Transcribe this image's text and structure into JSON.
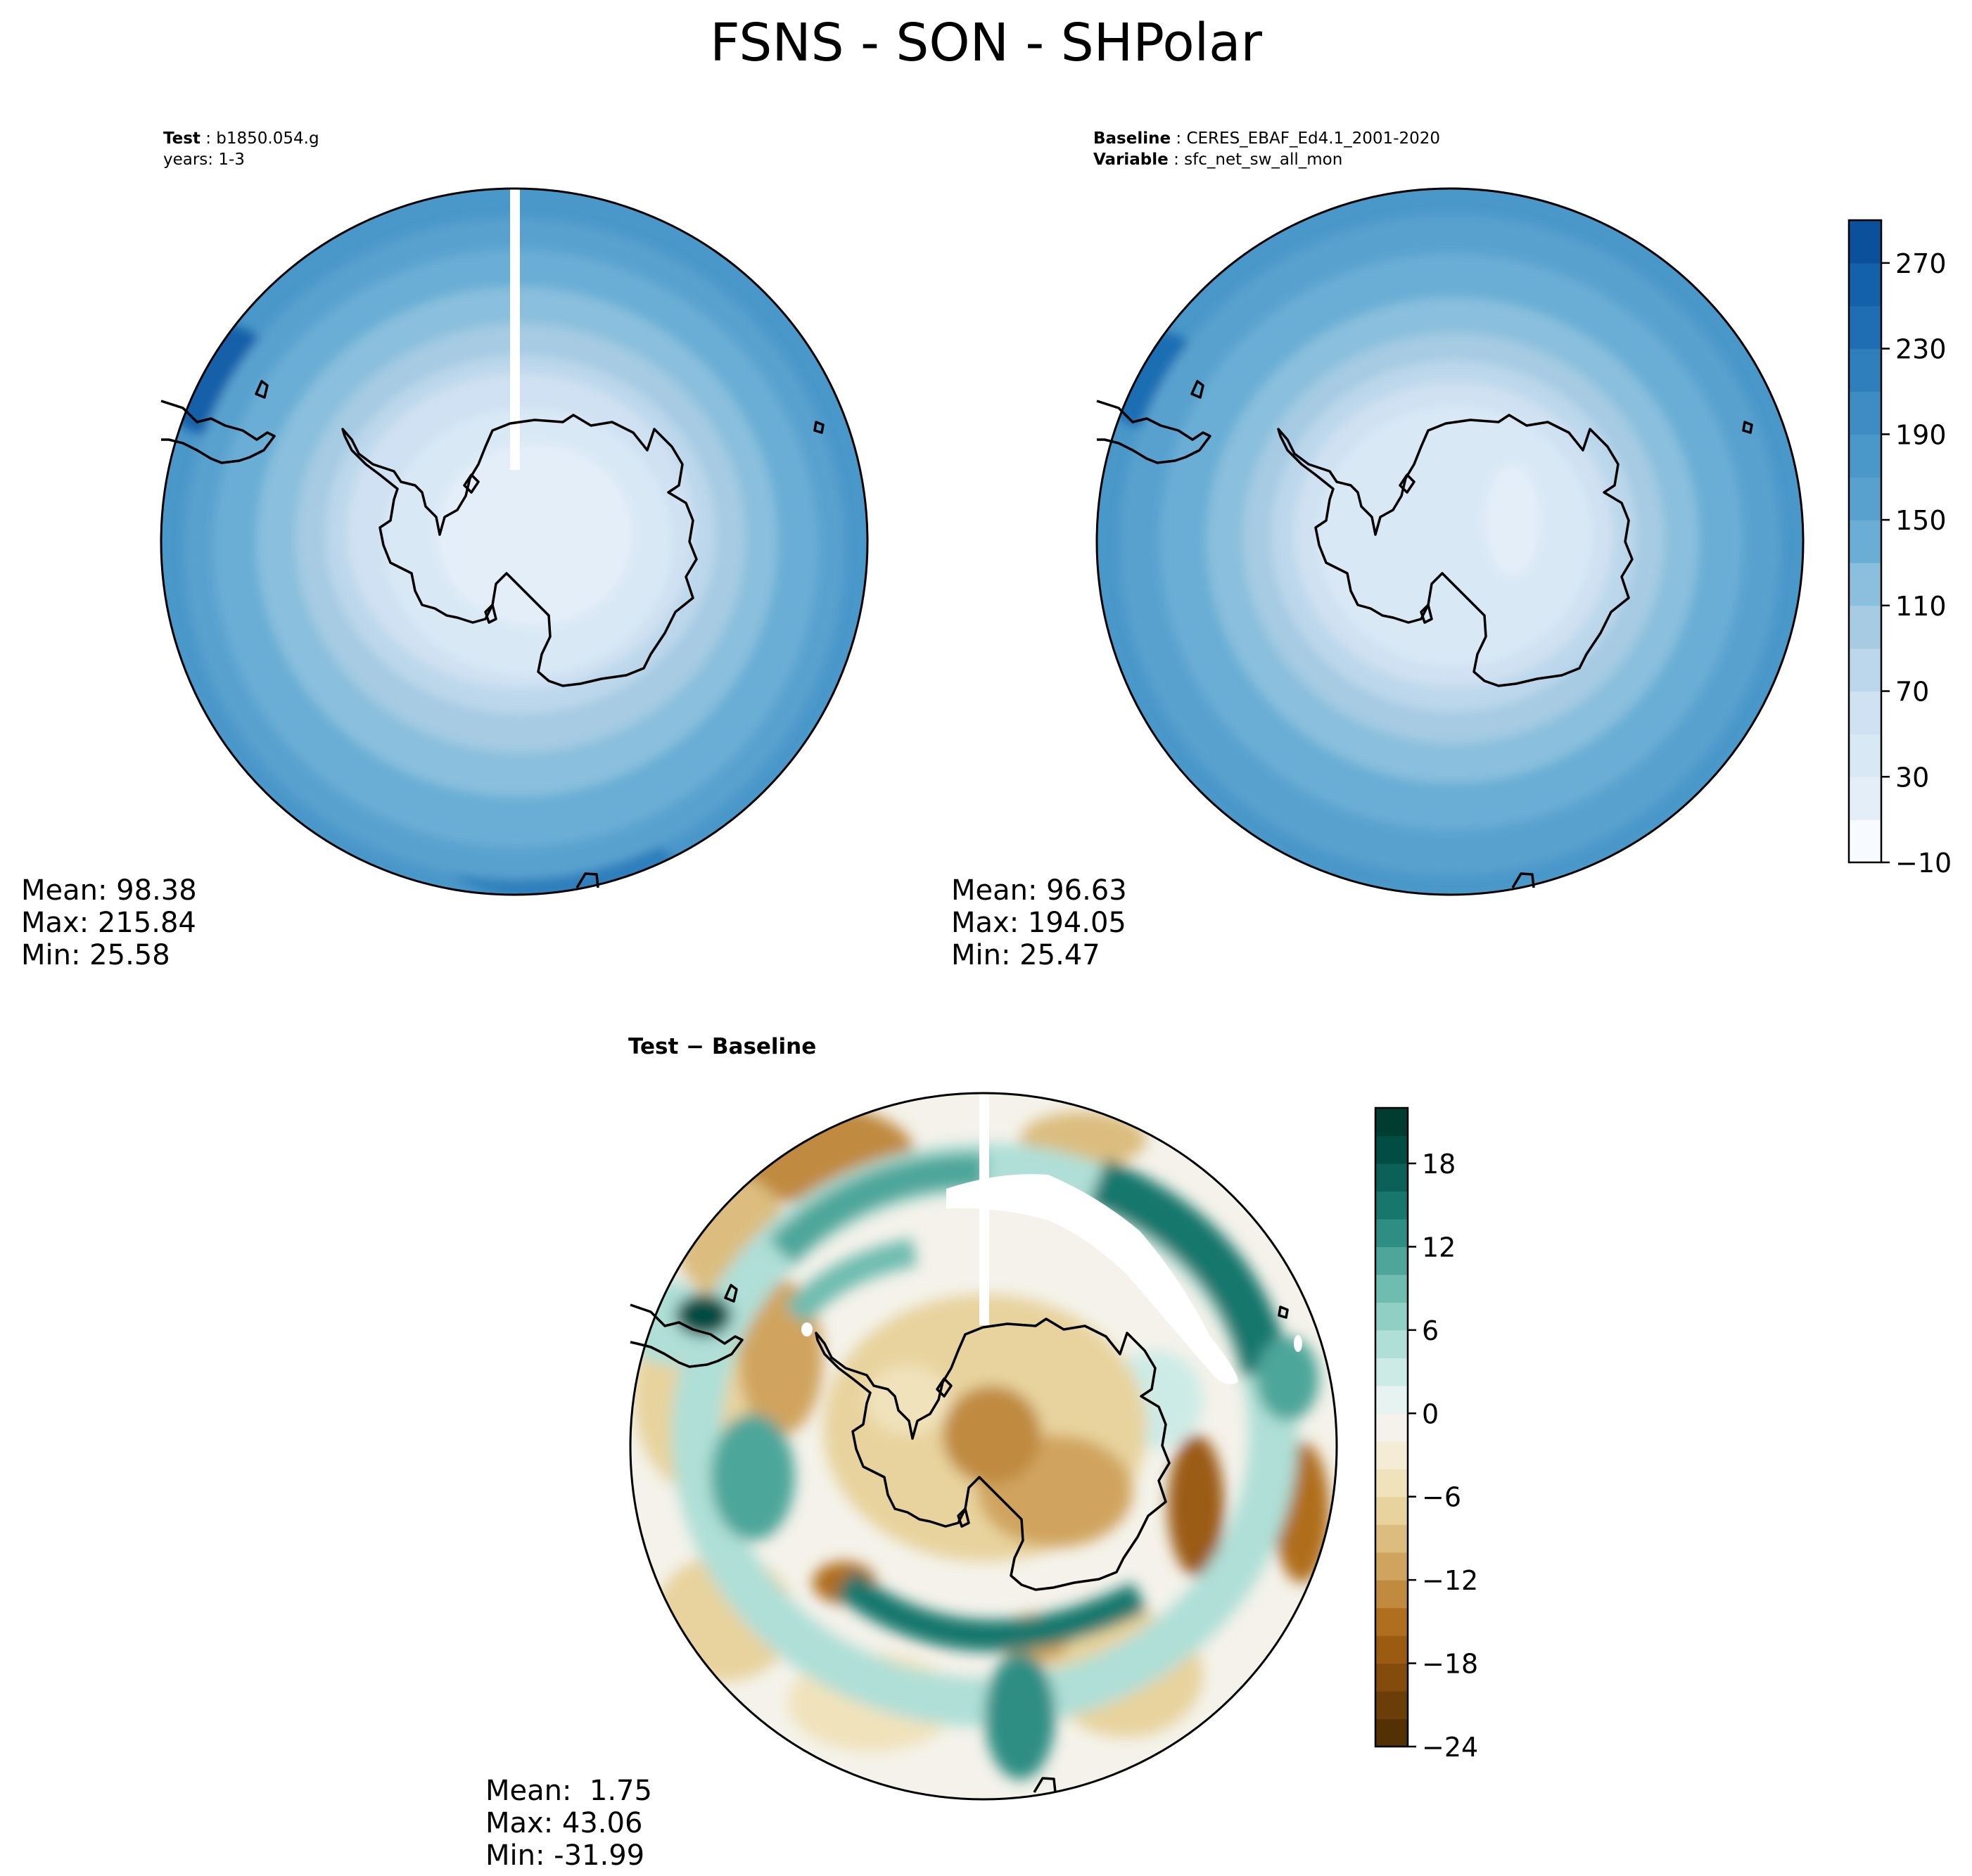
{
  "title": "FSNS - SON - SHPolar",
  "panels": {
    "test": {
      "header_label": "Test",
      "header_value": "b1850.054.g",
      "header_line2": "years: 1-3",
      "stats": {
        "mean": "Mean: 98.38",
        "max": "Max: 215.84",
        "min": "Min: 25.58"
      }
    },
    "baseline": {
      "header_label": "Baseline",
      "header_value": "CERES_EBAF_Ed4.1_2001-2020",
      "header_label2": "Variable",
      "header_value2": "sfc_net_sw_all_mon",
      "stats": {
        "mean": "Mean: 96.63",
        "max": "Max: 194.05",
        "min": "Min: 25.47"
      }
    },
    "diff": {
      "title_left": "Test",
      "title_sep": " − ",
      "title_right": "Baseline",
      "stats": {
        "mean": "Mean:  1.75",
        "max": "Max: 43.06",
        "min": "Min: -31.99"
      }
    }
  },
  "chart_data": [
    {
      "type": "heatmap",
      "projection": "south-polar-stereographic",
      "panel": "test",
      "colormap": "Blues",
      "colorbar_shared_with": "baseline",
      "radial_profile": [
        {
          "lat": -90,
          "value": 35
        },
        {
          "lat": -80,
          "value": 45
        },
        {
          "lat": -72,
          "value": 70
        },
        {
          "lat": -66,
          "value": 105
        },
        {
          "lat": -60,
          "value": 135
        },
        {
          "lat": -55,
          "value": 155
        },
        {
          "lat": -50,
          "value": 172
        }
      ]
    },
    {
      "type": "heatmap",
      "projection": "south-polar-stereographic",
      "panel": "baseline",
      "colormap": "Blues",
      "colorbar": {
        "levels": [
          -10,
          10,
          30,
          50,
          70,
          90,
          110,
          130,
          150,
          170,
          190,
          210,
          230,
          250,
          270,
          290
        ],
        "ticks": [
          "−10",
          "30",
          "70",
          "110",
          "150",
          "190",
          "230",
          "270"
        ],
        "colors": [
          "#f7fbff",
          "#e3eef9",
          "#d9e8f5",
          "#cfe1f2",
          "#bcd7eb",
          "#a6cbe3",
          "#8abfdd",
          "#6aaed6",
          "#58a1cf",
          "#4a97c9",
          "#3d8cc4",
          "#2f7fbc",
          "#1f6eb3",
          "#1361a9",
          "#0b509b",
          "#08306b"
        ]
      },
      "radial_profile": [
        {
          "lat": -90,
          "value": 30
        },
        {
          "lat": -80,
          "value": 40
        },
        {
          "lat": -72,
          "value": 62
        },
        {
          "lat": -66,
          "value": 98
        },
        {
          "lat": -60,
          "value": 130
        },
        {
          "lat": -55,
          "value": 150
        },
        {
          "lat": -50,
          "value": 165
        }
      ]
    },
    {
      "type": "heatmap",
      "projection": "south-polar-stereographic",
      "panel": "diff",
      "colormap": "BrBG",
      "colorbar": {
        "levels": [
          -24,
          -22,
          -20,
          -18,
          -16,
          -14,
          -12,
          -10,
          -8,
          -6,
          -4,
          -2,
          0,
          2,
          4,
          6,
          8,
          10,
          12,
          14,
          16,
          18,
          20,
          22
        ],
        "ticks": [
          "−24",
          "−18",
          "−12",
          "−6",
          "0",
          "6",
          "12",
          "18"
        ],
        "colors": [
          "#543005",
          "#6b3d09",
          "#834c0d",
          "#9b5c12",
          "#b06e1f",
          "#c08a3f",
          "#d0a45e",
          "#dcbd7f",
          "#e8d39e",
          "#f0e2bb",
          "#f5ecd5",
          "#f4f2ea",
          "#e6f3f1",
          "#cdebe6",
          "#afdfd7",
          "#90cfc4",
          "#6fbcb0",
          "#4ea69a",
          "#2f8e84",
          "#18776d",
          "#0b6158",
          "#014c43",
          "#003c30"
        ]
      }
    }
  ],
  "colors": {
    "coastline": "#000000",
    "missing": "#ffffff"
  }
}
